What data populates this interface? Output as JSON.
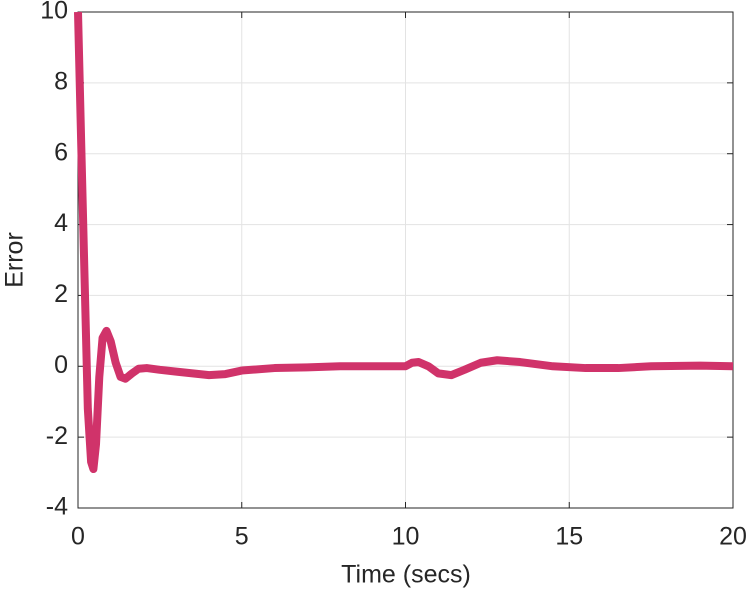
{
  "chart_data": {
    "type": "line",
    "xlabel": "Time (secs)",
    "ylabel": "Error",
    "xlim": [
      0,
      20
    ],
    "ylim": [
      -4,
      10
    ],
    "xticks": [
      0,
      5,
      10,
      15,
      20
    ],
    "yticks": [
      -4,
      -2,
      0,
      2,
      4,
      6,
      8,
      10
    ],
    "grid": true,
    "series": [
      {
        "name": "Error",
        "color": "#d0336a",
        "x": [
          0,
          0.1,
          0.2,
          0.3,
          0.4,
          0.47,
          0.55,
          0.65,
          0.75,
          0.87,
          1.0,
          1.15,
          1.3,
          1.45,
          1.65,
          1.85,
          2.1,
          2.5,
          3,
          3.5,
          4,
          4.5,
          5,
          6,
          7,
          8,
          9,
          10,
          10.2,
          10.4,
          10.7,
          11,
          11.4,
          11.8,
          12.3,
          12.8,
          13.5,
          14.5,
          15.5,
          16.5,
          17.5,
          19,
          20
        ],
        "values": [
          10,
          6.2,
          2.5,
          -1.2,
          -2.7,
          -2.9,
          -2.2,
          -0.3,
          0.8,
          1.0,
          0.7,
          0.1,
          -0.3,
          -0.35,
          -0.2,
          -0.07,
          -0.05,
          -0.1,
          -0.15,
          -0.2,
          -0.25,
          -0.22,
          -0.12,
          -0.05,
          -0.03,
          0,
          0,
          0,
          0.1,
          0.12,
          0,
          -0.2,
          -0.25,
          -0.1,
          0.1,
          0.17,
          0.12,
          0,
          -0.05,
          -0.05,
          0,
          0.02,
          0
        ]
      }
    ]
  }
}
